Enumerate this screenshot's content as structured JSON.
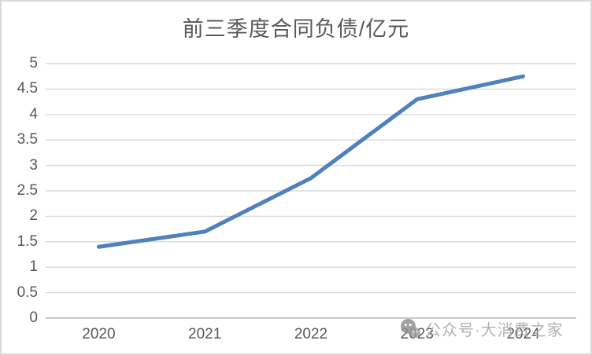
{
  "chart_data": {
    "type": "line",
    "title": "前三季度合同负债/亿元",
    "categories": [
      "2020",
      "2021",
      "2022",
      "2023",
      "2024"
    ],
    "values": [
      1.4,
      1.7,
      2.75,
      4.3,
      4.75
    ],
    "series_name": "前三季度合同负债",
    "xlabel": "",
    "ylabel": "",
    "ylim": [
      0,
      5
    ],
    "ytick_step": 0.5,
    "grid": true,
    "legend_position": "none",
    "line_color": "#4f81bd"
  },
  "watermark": {
    "icon": "wechat-icon",
    "text": "公众号·大消费之家"
  },
  "colors": {
    "background": "#ffffff",
    "border": "#d9d9d9",
    "gridline": "#d9d9d9",
    "axis_line": "#bfbfbf",
    "text": "#595959",
    "watermark_text": "#b3b3b3",
    "watermark_icon": "#8f8f8f"
  }
}
